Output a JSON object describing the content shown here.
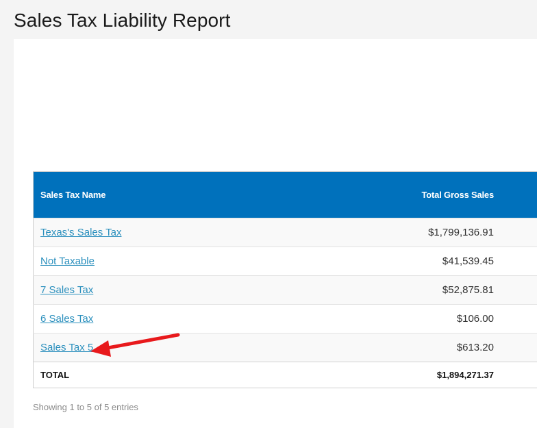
{
  "page": {
    "title": "Sales Tax Liability Report"
  },
  "table": {
    "headers": {
      "name": "Sales Tax Name",
      "sales": "Total Gross Sales"
    },
    "rows": [
      {
        "name": "Texas's Sales Tax",
        "sales": "$1,799,136.91"
      },
      {
        "name": "Not Taxable",
        "sales": "$41,539.45"
      },
      {
        "name": "7 Sales Tax",
        "sales": "$52,875.81"
      },
      {
        "name": "6 Sales Tax",
        "sales": "$106.00"
      },
      {
        "name": "Sales Tax 5",
        "sales": "$613.20"
      }
    ],
    "total": {
      "label": "TOTAL",
      "value": "$1,894,271.37"
    },
    "info": "Showing 1 to 5 of 5 entries"
  },
  "colors": {
    "header_bg": "#0071bc",
    "link": "#2a8fbd",
    "annotation_arrow": "#e8191c"
  },
  "annotation": {
    "icon": "red-arrow-icon",
    "points_to": "Sales Tax 5"
  }
}
